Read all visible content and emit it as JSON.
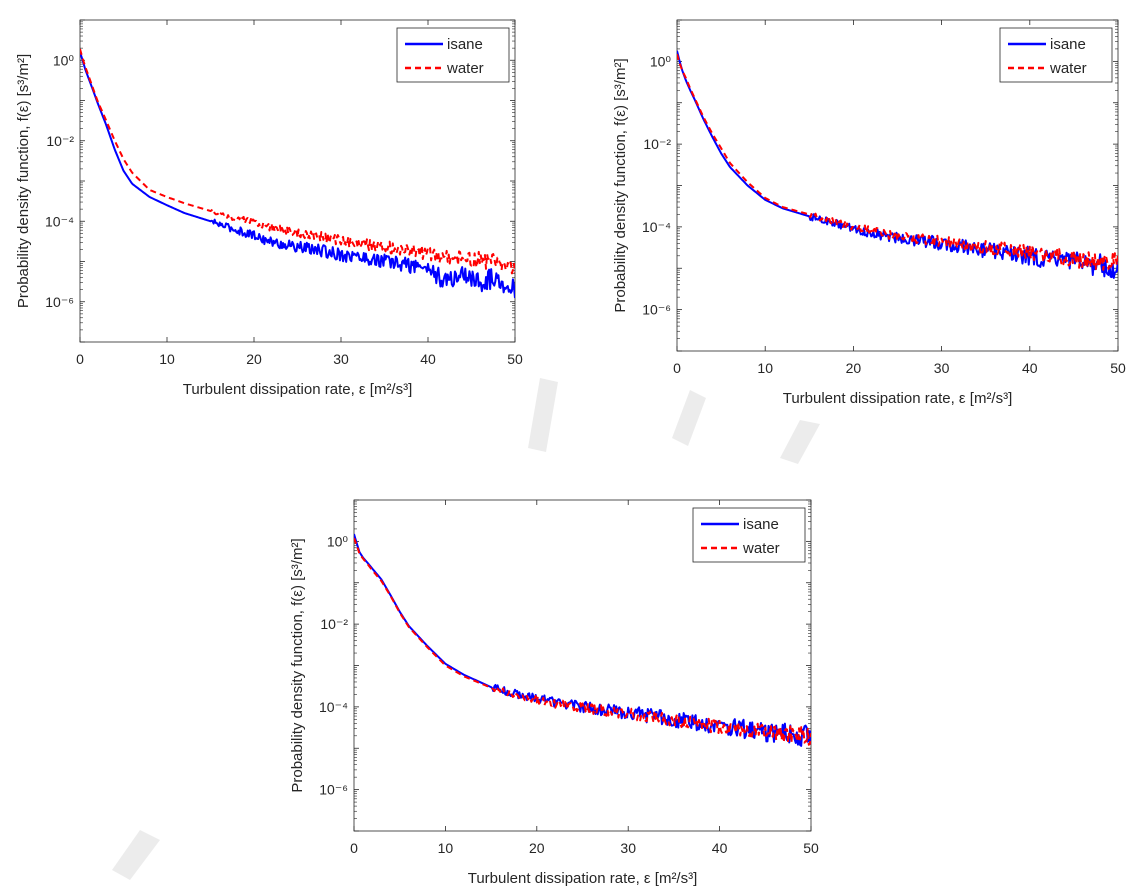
{
  "chart_data": [
    {
      "type": "line",
      "xlabel": "Turbulent dissipation rate, ε [m²/s³]",
      "ylabel": "Probability density function, f(ε) [s³/m²]",
      "x_ticks": [
        "0",
        "10",
        "20",
        "30",
        "40",
        "50"
      ],
      "y_ticks": [
        "10⁰",
        "10⁻²",
        "10⁻⁴",
        "10⁻⁶"
      ],
      "xlim": [
        0,
        50
      ],
      "y_scale": "log",
      "ylim": [
        1e-07,
        10
      ],
      "legend_position": "top-right",
      "series": [
        {
          "name": "isane",
          "color": "#0000ff",
          "dash": "solid",
          "x": [
            0,
            0.3,
            0.6,
            1,
            1.5,
            2,
            3,
            4,
            5,
            6,
            8,
            10,
            12,
            15,
            18,
            20,
            22,
            25,
            28,
            30,
            33,
            35,
            38,
            40,
            42,
            44,
            46,
            48,
            50
          ],
          "y": [
            1.6,
            1.0,
            0.6,
            0.35,
            0.18,
            0.09,
            0.025,
            0.006,
            0.0018,
            0.00085,
            0.0004,
            0.00025,
            0.00016,
            0.0001,
            6e-05,
            4.5e-05,
            3e-05,
            2.3e-05,
            1.8e-05,
            1.5e-05,
            1.2e-05,
            1e-05,
            8e-06,
            7e-06,
            3e-06,
            5e-06,
            3e-06,
            4e-06,
            2e-06
          ]
        },
        {
          "name": "water",
          "color": "#ff0000",
          "dash": "dashed",
          "x": [
            0,
            0.3,
            0.6,
            1,
            1.5,
            2,
            3,
            4,
            5,
            6,
            8,
            10,
            12,
            15,
            18,
            20,
            22,
            25,
            28,
            30,
            33,
            35,
            38,
            40,
            42,
            44,
            46,
            48,
            50
          ],
          "y": [
            1.9,
            1.1,
            0.7,
            0.4,
            0.2,
            0.1,
            0.032,
            0.01,
            0.0035,
            0.0016,
            0.0006,
            0.0004,
            0.00028,
            0.00018,
            0.00012,
            9e-05,
            7e-05,
            5e-05,
            4e-05,
            3.3e-05,
            2.6e-05,
            2.3e-05,
            1.9e-05,
            1.6e-05,
            1.3e-05,
            1.2e-05,
            1.1e-05,
            9e-06,
            8e-06
          ]
        }
      ]
    },
    {
      "type": "line",
      "xlabel": "Turbulent dissipation rate, ε [m²/s³]",
      "ylabel": "Probability density function, f(ε) [s³/m²]",
      "x_ticks": [
        "0",
        "10",
        "20",
        "30",
        "40",
        "50"
      ],
      "y_ticks": [
        "10⁰",
        "10⁻²",
        "10⁻⁴",
        "10⁻⁶"
      ],
      "xlim": [
        0,
        50
      ],
      "y_scale": "log",
      "ylim": [
        1e-07,
        10
      ],
      "legend_position": "top-right",
      "series": [
        {
          "name": "isane",
          "color": "#0000ff",
          "dash": "solid",
          "x": [
            0,
            0.3,
            0.6,
            1,
            1.5,
            2,
            3,
            4,
            5,
            6,
            8,
            10,
            12,
            15,
            18,
            20,
            22,
            25,
            28,
            30,
            33,
            35,
            38,
            40,
            42,
            44,
            46,
            48,
            50
          ],
          "y": [
            1.8,
            1.0,
            0.6,
            0.35,
            0.2,
            0.12,
            0.04,
            0.015,
            0.006,
            0.0028,
            0.001,
            0.00045,
            0.00028,
            0.00018,
            0.00012,
            9e-05,
            7e-05,
            5.5e-05,
            4.5e-05,
            4e-05,
            3.2e-05,
            2.8e-05,
            2.2e-05,
            2e-05,
            1.6e-05,
            1.5e-05,
            1.3e-05,
            1.2e-05,
            1e-05
          ]
        },
        {
          "name": "water",
          "color": "#ff0000",
          "dash": "dashed",
          "x": [
            0,
            0.3,
            0.6,
            1,
            1.5,
            2,
            3,
            4,
            5,
            6,
            8,
            10,
            12,
            15,
            18,
            20,
            22,
            25,
            28,
            30,
            33,
            35,
            38,
            40,
            42,
            44,
            46,
            48,
            50
          ],
          "y": [
            1.5,
            0.9,
            0.6,
            0.4,
            0.22,
            0.13,
            0.045,
            0.018,
            0.008,
            0.0035,
            0.0012,
            0.0005,
            0.0003,
            0.0002,
            0.00013,
            0.0001,
            8e-05,
            6e-05,
            5e-05,
            4.4e-05,
            3.6e-05,
            3.2e-05,
            2.7e-05,
            2.4e-05,
            2e-05,
            1.8e-05,
            1.6e-05,
            1.5e-05,
            1.4e-05
          ]
        }
      ]
    },
    {
      "type": "line",
      "xlabel": "Turbulent dissipation rate, ε [m²/s³]",
      "ylabel": "Probability density function, f(ε) [s³/m²]",
      "x_ticks": [
        "0",
        "10",
        "20",
        "30",
        "40",
        "50"
      ],
      "y_ticks": [
        "10⁰",
        "10⁻²",
        "10⁻⁴",
        "10⁻⁶"
      ],
      "xlim": [
        0,
        50
      ],
      "y_scale": "log",
      "ylim": [
        1e-07,
        10
      ],
      "legend_position": "top-right",
      "series": [
        {
          "name": "isane",
          "color": "#0000ff",
          "dash": "solid",
          "x": [
            0,
            0.3,
            0.6,
            1,
            1.5,
            2,
            3,
            4,
            5,
            6,
            8,
            10,
            12,
            15,
            18,
            20,
            22,
            25,
            28,
            30,
            33,
            35,
            38,
            40,
            42,
            44,
            46,
            48,
            50
          ],
          "y": [
            1.5,
            0.9,
            0.55,
            0.4,
            0.3,
            0.22,
            0.12,
            0.05,
            0.02,
            0.009,
            0.003,
            0.0011,
            0.0006,
            0.0003,
            0.0002,
            0.00016,
            0.00013,
            0.0001,
            8e-05,
            7e-05,
            6e-05,
            5e-05,
            4e-05,
            3.5e-05,
            3e-05,
            2.6e-05,
            2.4e-05,
            2.2e-05,
            2e-05
          ]
        },
        {
          "name": "water",
          "color": "#ff0000",
          "dash": "dashed",
          "x": [
            0,
            0.3,
            0.6,
            1,
            1.5,
            2,
            3,
            4,
            5,
            6,
            8,
            10,
            12,
            15,
            18,
            20,
            22,
            25,
            28,
            30,
            33,
            35,
            38,
            40,
            42,
            44,
            46,
            48,
            50
          ],
          "y": [
            1.2,
            0.8,
            0.5,
            0.38,
            0.28,
            0.2,
            0.11,
            0.048,
            0.019,
            0.0085,
            0.0028,
            0.001,
            0.00055,
            0.00029,
            0.00019,
            0.00015,
            0.00012,
            9.5e-05,
            7.8e-05,
            6.8e-05,
            5.7e-05,
            4.9e-05,
            3.9e-05,
            3.4e-05,
            2.9e-05,
            2.5e-05,
            2.3e-05,
            2.1e-05,
            1.9e-05
          ]
        }
      ]
    }
  ],
  "watermark_color": "#d4d4d4"
}
